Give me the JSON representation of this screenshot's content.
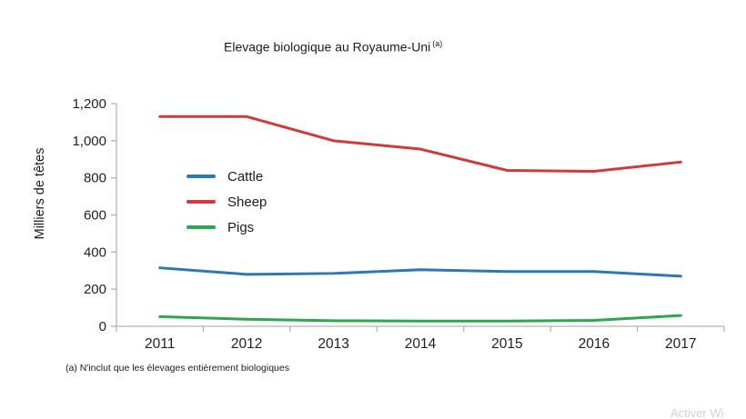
{
  "page": {
    "watermark": "Activer Wi"
  },
  "chart_data": {
    "type": "line",
    "title": "Elevage biologique au Royaume-Uni",
    "title_superscript": "(a)",
    "ylabel": "Milliers de têtes",
    "footnote": "(a) N'inclut que les élevages entièrement biologiques",
    "categories": [
      "2011",
      "2012",
      "2013",
      "2014",
      "2015",
      "2016",
      "2017"
    ],
    "series": [
      {
        "name": "Cattle",
        "color": "#2979b8",
        "values": [
          315,
          280,
          285,
          305,
          295,
          295,
          270
        ]
      },
      {
        "name": "Sheep",
        "color": "#cf3a3d",
        "values": [
          1130,
          1130,
          1000,
          955,
          840,
          835,
          885
        ]
      },
      {
        "name": "Pigs",
        "color": "#2aa84e",
        "values": [
          52,
          38,
          30,
          28,
          28,
          32,
          58
        ]
      }
    ],
    "ylim": [
      0,
      1200
    ],
    "yticks": [
      0,
      200,
      400,
      600,
      800,
      1000,
      1200
    ],
    "ytick_labels": [
      "0",
      "200",
      "400",
      "600",
      "800",
      "1,000",
      "1,200"
    ],
    "xlabel": "",
    "grid": false,
    "legend_position": "inside-upper-left",
    "axis_color": "#b3b3b3",
    "text_color": "#1f1f1f"
  }
}
